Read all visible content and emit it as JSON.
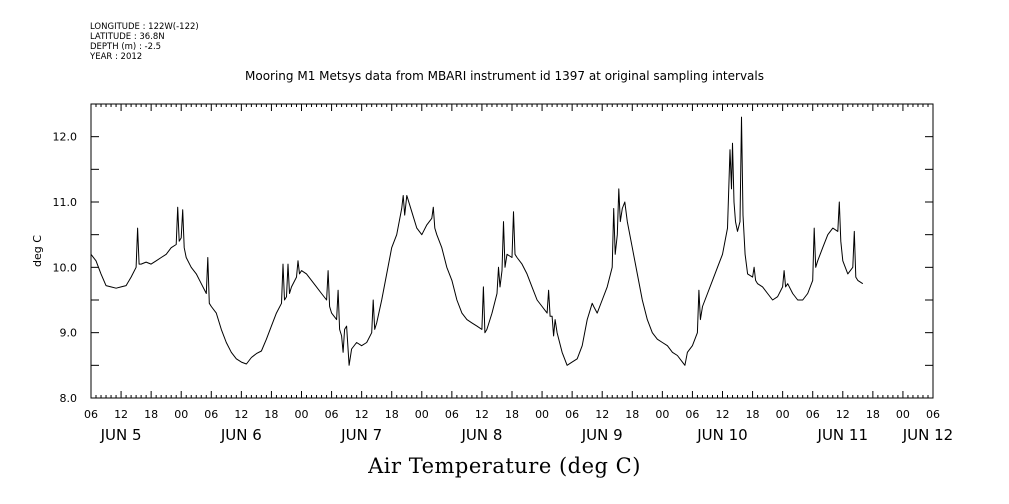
{
  "header": {
    "lines": [
      "LONGITUDE : 122W(-122)",
      "LATITUDE : 36.8N",
      "DEPTH (m) : -2.5",
      "YEAR : 2012"
    ]
  },
  "chart_data": {
    "type": "line",
    "title": "Mooring M1 Metsys data from MBARI instrument id 1397 at original sampling intervals",
    "xlabel": "Air Temperature (deg C)",
    "ylabel": "deg C",
    "ylim": [
      8.0,
      12.5
    ],
    "yticks": [
      "8.0",
      "9.0",
      "10.0",
      "11.0",
      "12.0"
    ],
    "xlim_hours": [
      6,
      174
    ],
    "xticks": [
      "06",
      "12",
      "18",
      "00",
      "06",
      "12",
      "18",
      "00",
      "06",
      "12",
      "18",
      "00",
      "06",
      "12",
      "18",
      "00",
      "06",
      "12",
      "18",
      "00",
      "06",
      "12",
      "18",
      "00",
      "06",
      "12",
      "18",
      "00",
      "06"
    ],
    "day_labels": [
      "JUN  5",
      "JUN  6",
      "JUN  7",
      "JUN  8",
      "JUN  9",
      "JUN 10",
      "JUN 11",
      "JUN 12"
    ],
    "grid": false,
    "series": [
      {
        "color": "#000000",
        "points": [
          [
            6,
            10.2
          ],
          [
            7,
            10.1
          ],
          [
            8,
            9.9
          ],
          [
            9,
            9.72
          ],
          [
            10,
            9.7
          ],
          [
            11,
            9.68
          ],
          [
            12,
            9.7
          ],
          [
            13,
            9.72
          ],
          [
            14,
            9.85
          ],
          [
            15,
            10.0
          ],
          [
            15.3,
            10.6
          ],
          [
            15.6,
            10.05
          ],
          [
            16,
            10.05
          ],
          [
            17,
            10.08
          ],
          [
            18,
            10.05
          ],
          [
            19,
            10.1
          ],
          [
            20,
            10.15
          ],
          [
            21,
            10.2
          ],
          [
            22,
            10.3
          ],
          [
            23,
            10.35
          ],
          [
            23.3,
            10.92
          ],
          [
            23.6,
            10.4
          ],
          [
            24,
            10.45
          ],
          [
            24.3,
            10.88
          ],
          [
            24.6,
            10.3
          ],
          [
            25,
            10.15
          ],
          [
            26,
            10.0
          ],
          [
            27,
            9.9
          ],
          [
            28,
            9.75
          ],
          [
            29,
            9.6
          ],
          [
            29.3,
            10.15
          ],
          [
            29.6,
            9.45
          ],
          [
            30,
            9.4
          ],
          [
            31,
            9.3
          ],
          [
            32,
            9.05
          ],
          [
            33,
            8.85
          ],
          [
            34,
            8.7
          ],
          [
            35,
            8.6
          ],
          [
            36,
            8.55
          ],
          [
            37,
            8.52
          ],
          [
            38,
            8.62
          ],
          [
            39,
            8.68
          ],
          [
            40,
            8.72
          ],
          [
            41,
            8.9
          ],
          [
            42,
            9.1
          ],
          [
            43,
            9.3
          ],
          [
            44,
            9.45
          ],
          [
            44.3,
            10.05
          ],
          [
            44.6,
            9.5
          ],
          [
            45,
            9.55
          ],
          [
            45.3,
            10.05
          ],
          [
            45.6,
            9.6
          ],
          [
            46,
            9.7
          ],
          [
            47,
            9.85
          ],
          [
            47.3,
            10.1
          ],
          [
            47.6,
            9.9
          ],
          [
            48,
            9.95
          ],
          [
            49,
            9.9
          ],
          [
            50,
            9.8
          ],
          [
            51,
            9.7
          ],
          [
            52,
            9.6
          ],
          [
            53,
            9.5
          ],
          [
            53.3,
            9.95
          ],
          [
            53.6,
            9.4
          ],
          [
            54,
            9.3
          ],
          [
            55,
            9.2
          ],
          [
            55.3,
            9.65
          ],
          [
            55.6,
            9.05
          ],
          [
            56,
            8.95
          ],
          [
            56.3,
            8.7
          ],
          [
            56.6,
            9.05
          ],
          [
            57,
            9.1
          ],
          [
            57.5,
            8.5
          ],
          [
            58,
            8.75
          ],
          [
            59,
            8.85
          ],
          [
            60,
            8.8
          ],
          [
            61,
            8.85
          ],
          [
            62,
            9.0
          ],
          [
            62.3,
            9.5
          ],
          [
            62.6,
            9.05
          ],
          [
            63,
            9.15
          ],
          [
            64,
            9.5
          ],
          [
            65,
            9.9
          ],
          [
            66,
            10.3
          ],
          [
            67,
            10.5
          ],
          [
            68,
            10.9
          ],
          [
            68.3,
            11.1
          ],
          [
            68.6,
            10.8
          ],
          [
            69,
            11.1
          ],
          [
            70,
            10.85
          ],
          [
            71,
            10.6
          ],
          [
            72,
            10.5
          ],
          [
            73,
            10.65
          ],
          [
            74,
            10.75
          ],
          [
            74.3,
            10.92
          ],
          [
            74.6,
            10.6
          ],
          [
            75,
            10.5
          ],
          [
            76,
            10.3
          ],
          [
            77,
            10.0
          ],
          [
            78,
            9.8
          ],
          [
            79,
            9.5
          ],
          [
            80,
            9.3
          ],
          [
            81,
            9.2
          ],
          [
            82,
            9.15
          ],
          [
            83,
            9.1
          ],
          [
            84,
            9.05
          ],
          [
            84.3,
            9.7
          ],
          [
            84.6,
            9.0
          ],
          [
            85,
            9.05
          ],
          [
            86,
            9.3
          ],
          [
            87,
            9.6
          ],
          [
            87.3,
            10.0
          ],
          [
            87.6,
            9.7
          ],
          [
            88,
            9.95
          ],
          [
            88.3,
            10.7
          ],
          [
            88.6,
            10.0
          ],
          [
            89,
            10.2
          ],
          [
            90,
            10.15
          ],
          [
            90.3,
            10.85
          ],
          [
            90.6,
            10.2
          ],
          [
            91,
            10.15
          ],
          [
            92,
            10.05
          ],
          [
            93,
            9.9
          ],
          [
            94,
            9.7
          ],
          [
            95,
            9.5
          ],
          [
            96,
            9.4
          ],
          [
            97,
            9.3
          ],
          [
            97.3,
            9.65
          ],
          [
            97.6,
            9.25
          ],
          [
            98,
            9.25
          ],
          [
            98.3,
            8.95
          ],
          [
            98.6,
            9.2
          ],
          [
            99,
            9.0
          ],
          [
            100,
            8.7
          ],
          [
            101,
            8.5
          ],
          [
            102,
            8.55
          ],
          [
            103,
            8.6
          ],
          [
            104,
            8.8
          ],
          [
            105,
            9.2
          ],
          [
            106,
            9.45
          ],
          [
            106.3,
            9.4
          ],
          [
            107,
            9.3
          ],
          [
            108,
            9.5
          ],
          [
            109,
            9.7
          ],
          [
            110,
            10.0
          ],
          [
            110.3,
            10.9
          ],
          [
            110.6,
            10.2
          ],
          [
            111,
            10.5
          ],
          [
            111.3,
            11.2
          ],
          [
            111.6,
            10.7
          ],
          [
            112,
            10.9
          ],
          [
            112.5,
            11.0
          ],
          [
            113,
            10.7
          ],
          [
            114,
            10.3
          ],
          [
            115,
            9.9
          ],
          [
            116,
            9.5
          ],
          [
            117,
            9.2
          ],
          [
            118,
            9.0
          ],
          [
            119,
            8.9
          ],
          [
            120,
            8.85
          ],
          [
            121,
            8.8
          ],
          [
            122,
            8.7
          ],
          [
            123,
            8.65
          ],
          [
            124,
            8.55
          ],
          [
            124.5,
            8.5
          ],
          [
            125,
            8.7
          ],
          [
            126,
            8.8
          ],
          [
            127,
            9.0
          ],
          [
            127.3,
            9.65
          ],
          [
            127.6,
            9.2
          ],
          [
            128,
            9.4
          ],
          [
            129,
            9.6
          ],
          [
            130,
            9.8
          ],
          [
            131,
            10.0
          ],
          [
            132,
            10.2
          ],
          [
            133,
            10.6
          ],
          [
            133.5,
            11.8
          ],
          [
            133.8,
            11.2
          ],
          [
            134,
            11.9
          ],
          [
            134.3,
            11.0
          ],
          [
            134.6,
            10.7
          ],
          [
            135,
            10.55
          ],
          [
            135.5,
            10.7
          ],
          [
            135.8,
            12.3
          ],
          [
            136.1,
            10.8
          ],
          [
            136.5,
            10.2
          ],
          [
            137,
            9.9
          ],
          [
            138,
            9.85
          ],
          [
            138.3,
            10.0
          ],
          [
            138.6,
            9.8
          ],
          [
            139,
            9.75
          ],
          [
            140,
            9.7
          ],
          [
            141,
            9.6
          ],
          [
            142,
            9.5
          ],
          [
            143,
            9.55
          ],
          [
            144,
            9.7
          ],
          [
            144.3,
            9.95
          ],
          [
            144.6,
            9.7
          ],
          [
            145,
            9.75
          ],
          [
            146,
            9.6
          ],
          [
            147,
            9.5
          ],
          [
            148,
            9.5
          ],
          [
            149,
            9.6
          ],
          [
            150,
            9.8
          ],
          [
            150.3,
            10.6
          ],
          [
            150.6,
            10.0
          ],
          [
            151,
            10.1
          ],
          [
            152,
            10.3
          ],
          [
            153,
            10.5
          ],
          [
            154,
            10.6
          ],
          [
            155,
            10.55
          ],
          [
            155.3,
            11.0
          ],
          [
            155.6,
            10.4
          ],
          [
            156,
            10.1
          ],
          [
            157,
            9.9
          ],
          [
            158,
            10.0
          ],
          [
            158.3,
            10.55
          ],
          [
            158.6,
            9.85
          ],
          [
            159,
            9.8
          ],
          [
            160,
            9.75
          ]
        ]
      }
    ]
  }
}
